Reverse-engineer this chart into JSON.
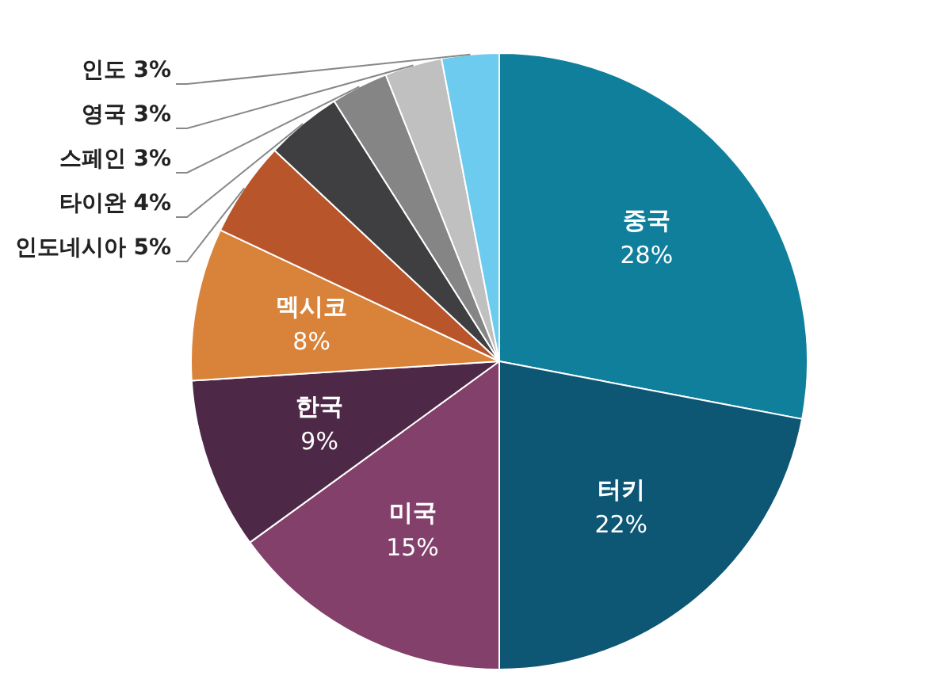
{
  "chart_data": {
    "type": "pie",
    "categories": [
      "중국",
      "터키",
      "미국",
      "한국",
      "멕시코",
      "인도네시아",
      "타이완",
      "스페인",
      "영국",
      "인도"
    ],
    "values": [
      28,
      22,
      15,
      9,
      8,
      5,
      4,
      3,
      3,
      3
    ],
    "value_labels": [
      "28%",
      "22%",
      "15%",
      "9%",
      "8%",
      "5%",
      "4%",
      "3%",
      "3%",
      "3%"
    ],
    "colors": [
      "#0f7f9c",
      "#0d5674",
      "#82406b",
      "#4e2847",
      "#d9823a",
      "#b9552a",
      "#3f3f42",
      "#858585",
      "#c0c0c0",
      "#6ccbee"
    ],
    "legend": false
  }
}
